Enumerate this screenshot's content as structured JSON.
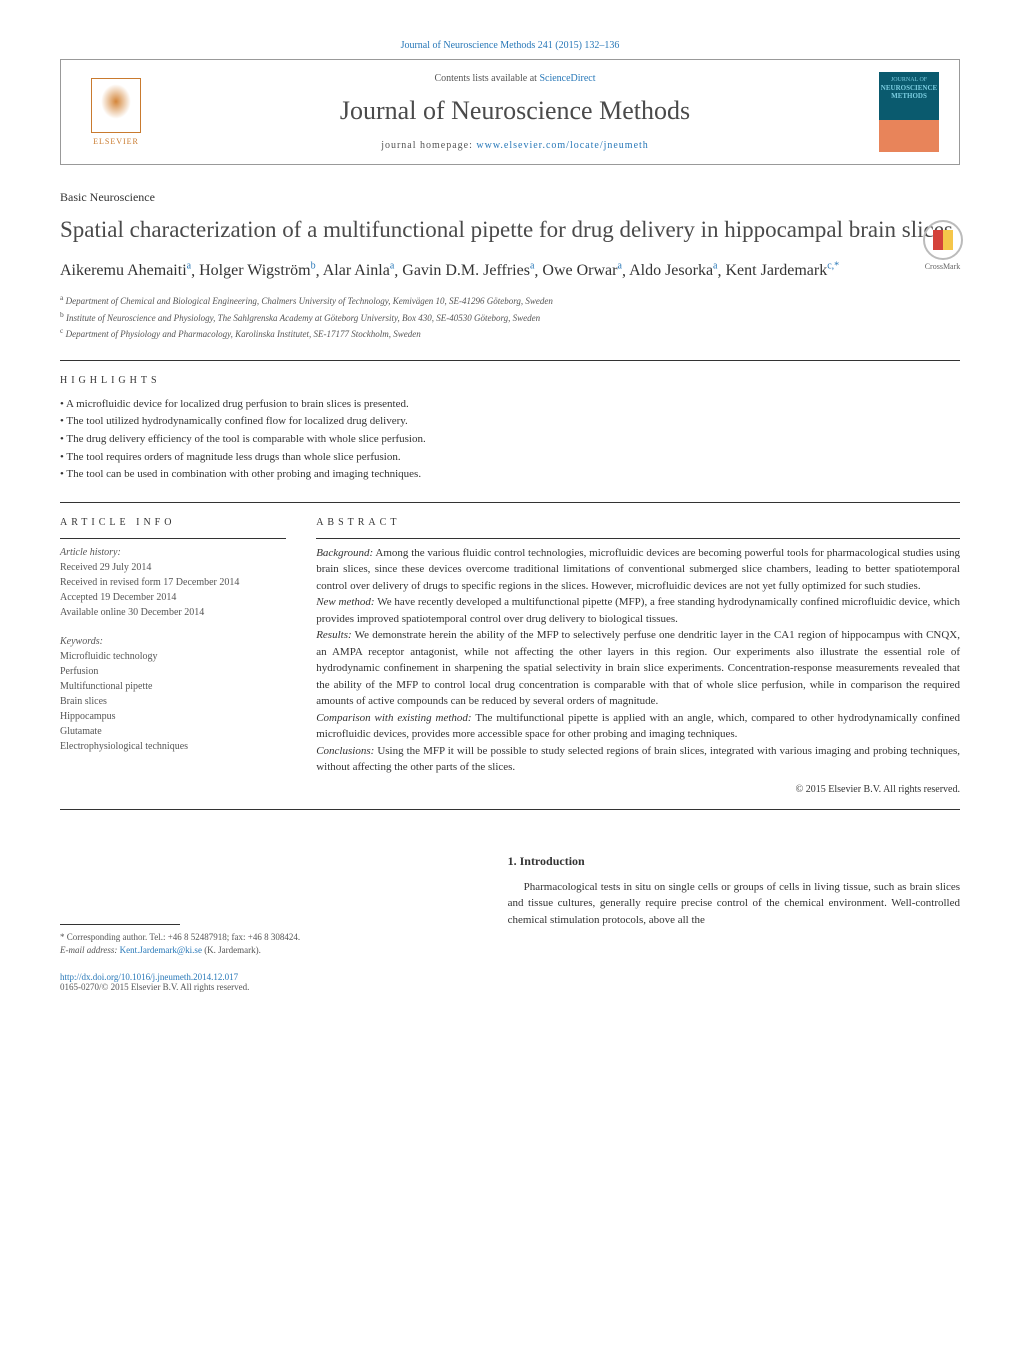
{
  "journal_ref": "Journal of Neuroscience Methods 241 (2015) 132–136",
  "header": {
    "elsevier_label": "ELSEVIER",
    "contents_text": "Contents lists available at ",
    "contents_link": "ScienceDirect",
    "journal_title": "Journal of Neuroscience Methods",
    "homepage_label": "journal homepage: ",
    "homepage_url": "www.elsevier.com/locate/jneumeth",
    "cover_line1": "JOURNAL OF",
    "cover_line2": "NEUROSCIENCE",
    "cover_line3": "METHODS"
  },
  "section_label": "Basic Neuroscience",
  "article_title": "Spatial characterization of a multifunctional pipette for drug delivery in hippocampal brain slices",
  "crossmark_label": "CrossMark",
  "authors": [
    {
      "name": "Aikeremu Ahemaiti",
      "aff": "a"
    },
    {
      "name": "Holger Wigström",
      "aff": "b"
    },
    {
      "name": "Alar Ainla",
      "aff": "a"
    },
    {
      "name": "Gavin D.M. Jeffries",
      "aff": "a"
    },
    {
      "name": "Owe Orwar",
      "aff": "a"
    },
    {
      "name": "Aldo Jesorka",
      "aff": "a"
    },
    {
      "name": "Kent Jardemark",
      "aff": "c,*"
    }
  ],
  "affiliations": [
    {
      "sup": "a",
      "text": "Department of Chemical and Biological Engineering, Chalmers University of Technology, Kemivägen 10, SE-41296 Göteborg, Sweden"
    },
    {
      "sup": "b",
      "text": "Institute of Neuroscience and Physiology, The Sahlgrenska Academy at Göteborg University, Box 430, SE-40530 Göteborg, Sweden"
    },
    {
      "sup": "c",
      "text": "Department of Physiology and Pharmacology, Karolinska Institutet, SE-17177 Stockholm, Sweden"
    }
  ],
  "highlights_heading": "highlights",
  "highlights": [
    "A microfluidic device for localized drug perfusion to brain slices is presented.",
    "The tool utilized hydrodynamically confined flow for localized drug delivery.",
    "The drug delivery efficiency of the tool is comparable with whole slice perfusion.",
    "The tool requires orders of magnitude less drugs than whole slice perfusion.",
    "The tool can be used in combination with other probing and imaging techniques."
  ],
  "article_info_heading": "article info",
  "abstract_heading": "abstract",
  "history": {
    "label": "Article history:",
    "received": "Received 29 July 2014",
    "revised": "Received in revised form 17 December 2014",
    "accepted": "Accepted 19 December 2014",
    "online": "Available online 30 December 2014"
  },
  "keywords_label": "Keywords:",
  "keywords": [
    "Microfluidic technology",
    "Perfusion",
    "Multifunctional pipette",
    "Brain slices",
    "Hippocampus",
    "Glutamate",
    "Electrophysiological techniques"
  ],
  "abstract": {
    "background_label": "Background:",
    "background": "Among the various fluidic control technologies, microfluidic devices are becoming powerful tools for pharmacological studies using brain slices, since these devices overcome traditional limitations of conventional submerged slice chambers, leading to better spatiotemporal control over delivery of drugs to specific regions in the slices. However, microfluidic devices are not yet fully optimized for such studies.",
    "new_method_label": "New method:",
    "new_method": "We have recently developed a multifunctional pipette (MFP), a free standing hydrodynamically confined microfluidic device, which provides improved spatiotemporal control over drug delivery to biological tissues.",
    "results_label": "Results:",
    "results": "We demonstrate herein the ability of the MFP to selectively perfuse one dendritic layer in the CA1 region of hippocampus with CNQX, an AMPA receptor antagonist, while not affecting the other layers in this region. Our experiments also illustrate the essential role of hydrodynamic confinement in sharpening the spatial selectivity in brain slice experiments. Concentration-response measurements revealed that the ability of the MFP to control local drug concentration is comparable with that of whole slice perfusion, while in comparison the required amounts of active compounds can be reduced by several orders of magnitude.",
    "comparison_label": "Comparison with existing method:",
    "comparison": "The multifunctional pipette is applied with an angle, which, compared to other hydrodynamically confined microfluidic devices, provides more accessible space for other probing and imaging techniques.",
    "conclusions_label": "Conclusions:",
    "conclusions": "Using the MFP it will be possible to study selected regions of brain slices, integrated with various imaging and probing techniques, without affecting the other parts of the slices."
  },
  "copyright": "© 2015 Elsevier B.V. All rights reserved.",
  "intro": {
    "heading": "1. Introduction",
    "text": "Pharmacological tests in situ on single cells or groups of cells in living tissue, such as brain slices and tissue cultures, generally require precise control of the chemical environment. Well-controlled chemical stimulation protocols, above all the"
  },
  "footer": {
    "corresponding_label": "* Corresponding author. Tel.: +46 8 52487918; fax: +46 8 308424.",
    "email_label": "E-mail address: ",
    "email": "Kent.Jardemark@ki.se",
    "email_name": " (K. Jardemark).",
    "doi_url": "http://dx.doi.org/10.1016/j.jneumeth.2014.12.017",
    "issn_copyright": "0165-0270/© 2015 Elsevier B.V. All rights reserved."
  },
  "colors": {
    "link_blue": "#2878b8",
    "elsevier_orange": "#c97a2e",
    "text_gray": "#4a4a4a"
  }
}
